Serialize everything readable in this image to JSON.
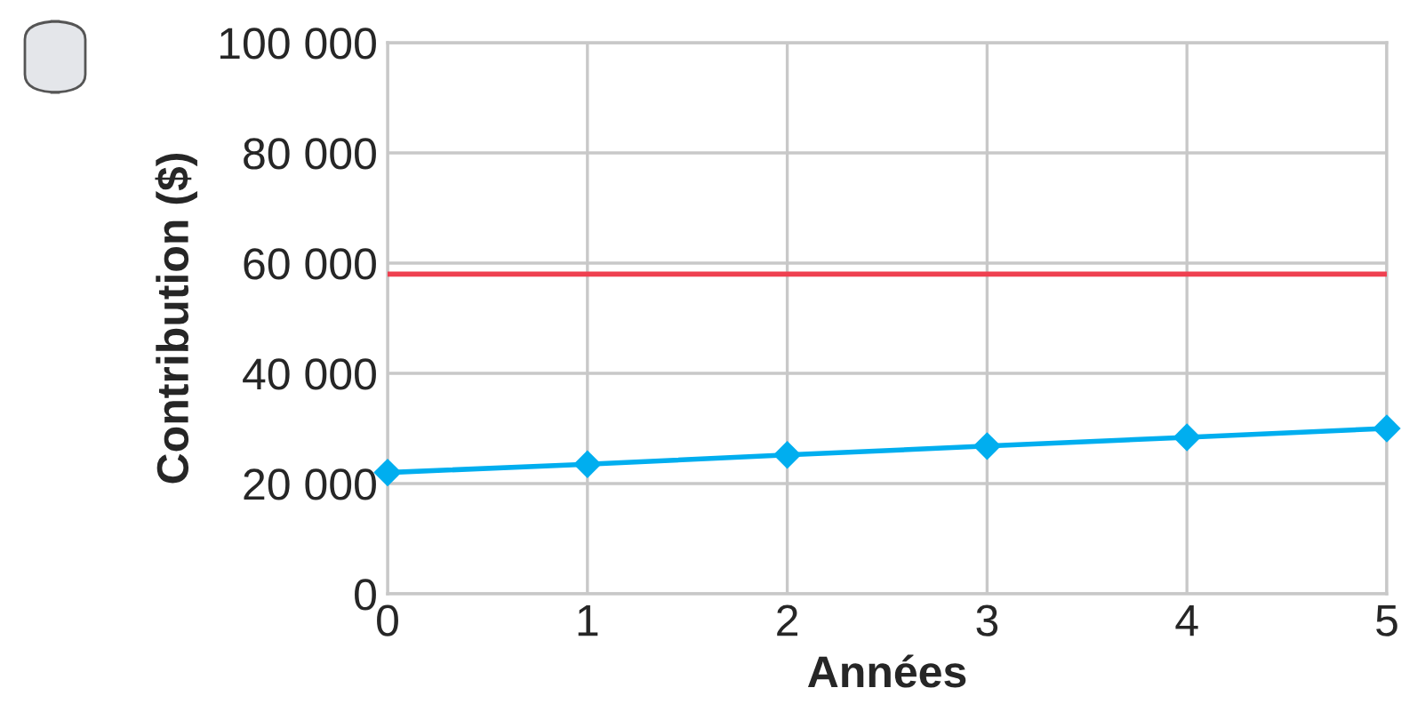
{
  "chart_data": {
    "type": "line",
    "xlabel": "Années",
    "ylabel": "Contribution ($)",
    "x": [
      0,
      1,
      2,
      3,
      4,
      5
    ],
    "series": [
      {
        "color": "#00aeef",
        "values": [
          22000,
          23500,
          25200,
          26800,
          28400,
          30000
        ]
      }
    ],
    "ref_lines": [
      {
        "axis": "y",
        "value": 58000,
        "color": "#ef4050"
      }
    ],
    "xlim": [
      0,
      5
    ],
    "xticks": [
      0,
      1,
      2,
      3,
      4,
      5
    ],
    "ylim": [
      0,
      100000
    ],
    "yticks": [
      0,
      {
        "value": 20000,
        "label": "20 000"
      },
      {
        "value": 40000,
        "label": "40 000"
      },
      {
        "value": 60000,
        "label": "60 000"
      },
      {
        "value": 80000,
        "label": "80 000"
      },
      {
        "value": 100000,
        "label": "100 000"
      }
    ],
    "grid": true,
    "marker": "diamond",
    "line_style": "solid"
  }
}
